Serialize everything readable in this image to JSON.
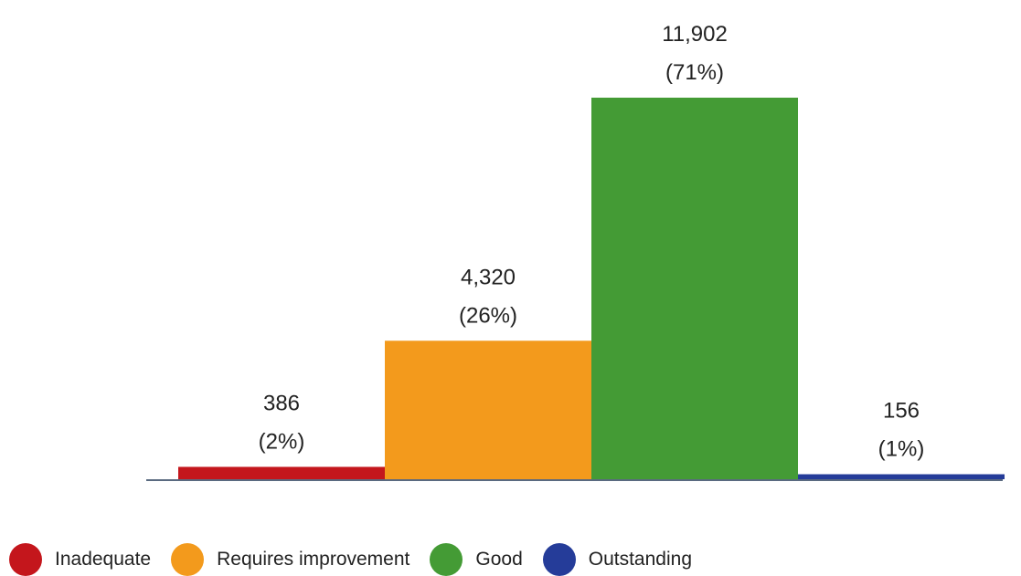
{
  "chart_data": {
    "type": "bar",
    "categories": [
      "Inadequate",
      "Requires improvement",
      "Good",
      "Outstanding"
    ],
    "values": [
      386,
      4320,
      11902,
      156
    ],
    "value_labels": [
      "386",
      "4,320",
      "11,902",
      "156"
    ],
    "percent_labels": [
      "(2%)",
      "(26%)",
      "(71%)",
      "(1%)"
    ],
    "colors": [
      "#c4161c",
      "#f39a1c",
      "#449b35",
      "#253c99"
    ],
    "axis_color": "#5a6a80",
    "ylim": [
      0,
      11902
    ],
    "grid": false,
    "legend_placement": "bottom-left"
  },
  "legend": {
    "items": [
      {
        "label": "Inadequate",
        "color": "#c4161c"
      },
      {
        "label": "Requires improvement",
        "color": "#f39a1c"
      },
      {
        "label": "Good",
        "color": "#449b35"
      },
      {
        "label": "Outstanding",
        "color": "#253c99"
      }
    ]
  }
}
